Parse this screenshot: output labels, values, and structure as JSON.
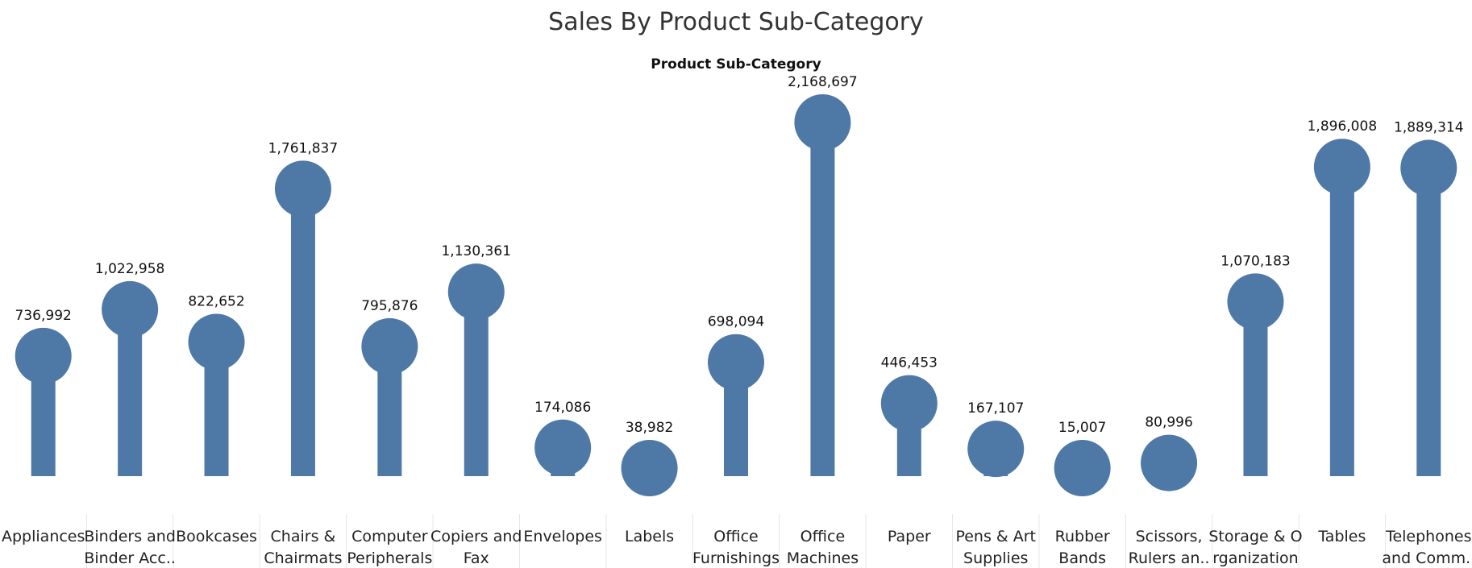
{
  "chart_data": {
    "type": "bar",
    "style": "lollipop",
    "title": "Sales By Product Sub-Category",
    "column_header": "Product Sub-Category",
    "color": "#4e79a7",
    "categories": [
      [
        "Appliances"
      ],
      [
        "Binders and",
        "Binder Acc.."
      ],
      [
        "Bookcases"
      ],
      [
        "Chairs &",
        "Chairmats"
      ],
      [
        "Computer",
        "Peripherals"
      ],
      [
        "Copiers and",
        "Fax"
      ],
      [
        "Envelopes"
      ],
      [
        "Labels"
      ],
      [
        "Office",
        "Furnishings"
      ],
      [
        "Office",
        "Machines"
      ],
      [
        "Paper"
      ],
      [
        "Pens & Art",
        "Supplies"
      ],
      [
        "Rubber",
        "Bands"
      ],
      [
        "Scissors,",
        "Rulers an.."
      ],
      [
        "Storage & O",
        "rganization"
      ],
      [
        "Tables"
      ],
      [
        "Telephones",
        "and Comm.."
      ]
    ],
    "values": [
      736992,
      1022958,
      822652,
      1761837,
      795876,
      1130361,
      174086,
      38982,
      698094,
      2168697,
      446453,
      167107,
      15007,
      80996,
      1070183,
      1896008,
      1889314
    ],
    "value_labels": [
      "736,992",
      "1,022,958",
      "822,652",
      "1,761,837",
      "795,876",
      "1,130,361",
      "174,086",
      "38,982",
      "698,094",
      "2,168,697",
      "446,453",
      "167,107",
      "15,007",
      "80,996",
      "1,070,183",
      "1,896,008",
      "1,889,314"
    ],
    "grid": false,
    "legend": "none"
  }
}
